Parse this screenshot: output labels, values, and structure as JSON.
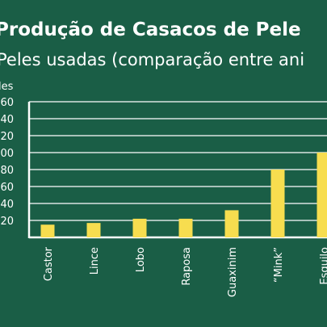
{
  "colors": {
    "background": "#1a5e46",
    "bar": "#f7dd4f",
    "grid": "#ffffff",
    "text": "#ffffff"
  },
  "chart_data": {
    "type": "bar",
    "title": "Produção de Casacos de Pele",
    "subtitle": "Peles usadas (comparação entre ani",
    "ylabel": "les",
    "xlabel": "",
    "categories": [
      "Castor",
      "Lince",
      "Lobo",
      "Raposa",
      "Guaxinim",
      "“Mink”",
      "Esquilo"
    ],
    "values": [
      15,
      17,
      22,
      22,
      32,
      80,
      100
    ],
    "ylim": [
      0,
      160
    ],
    "yticks": [
      20,
      40,
      60,
      80,
      100,
      120,
      140,
      160
    ],
    "ytick_labels": [
      "20",
      "40",
      "60",
      "80",
      "100",
      "120",
      "140",
      "160"
    ],
    "grid": true
  }
}
